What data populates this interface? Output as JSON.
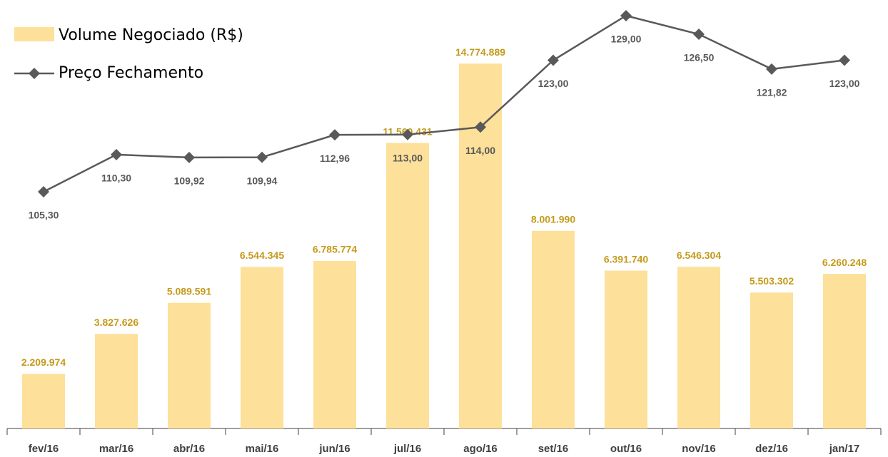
{
  "chart_data": {
    "type": "bar-line",
    "categories": [
      "fev/16",
      "mar/16",
      "abr/16",
      "mai/16",
      "jun/16",
      "jul/16",
      "ago/16",
      "set/16",
      "out/16",
      "nov/16",
      "dez/16",
      "jan/17"
    ],
    "series": [
      {
        "name": "Volume Negociado (R$)",
        "type": "bar",
        "color": "#fde099",
        "values": [
          2209974,
          3827626,
          5089591,
          6544345,
          6785774,
          11560431,
          14774889,
          8001990,
          6391740,
          6546304,
          5503302,
          6260248
        ],
        "value_labels": [
          "2.209.974",
          "3.827.626",
          "5.089.591",
          "6.544.345",
          "6.785.774",
          "11.560.431",
          "14.774.889",
          "8.001.990",
          "6.391.740",
          "6.546.304",
          "5.503.302",
          "6.260.248"
        ]
      },
      {
        "name": "Preço Fechamento",
        "type": "line",
        "axis": "y2",
        "color": "#595959",
        "values": [
          105.3,
          110.3,
          109.92,
          109.94,
          112.96,
          113.0,
          114.0,
          123.0,
          129.0,
          126.5,
          121.82,
          123.0
        ],
        "value_labels": [
          "105,30",
          "110,30",
          "109,92",
          "109,94",
          "112,96",
          "113,00",
          "114,00",
          "123,00",
          "129,00",
          "126,50",
          "121,82",
          "123,00"
        ]
      }
    ],
    "ylim": [
      0,
      17350000
    ],
    "y2lim": [
      73.44,
      131.11
    ],
    "legend": "top-left"
  }
}
